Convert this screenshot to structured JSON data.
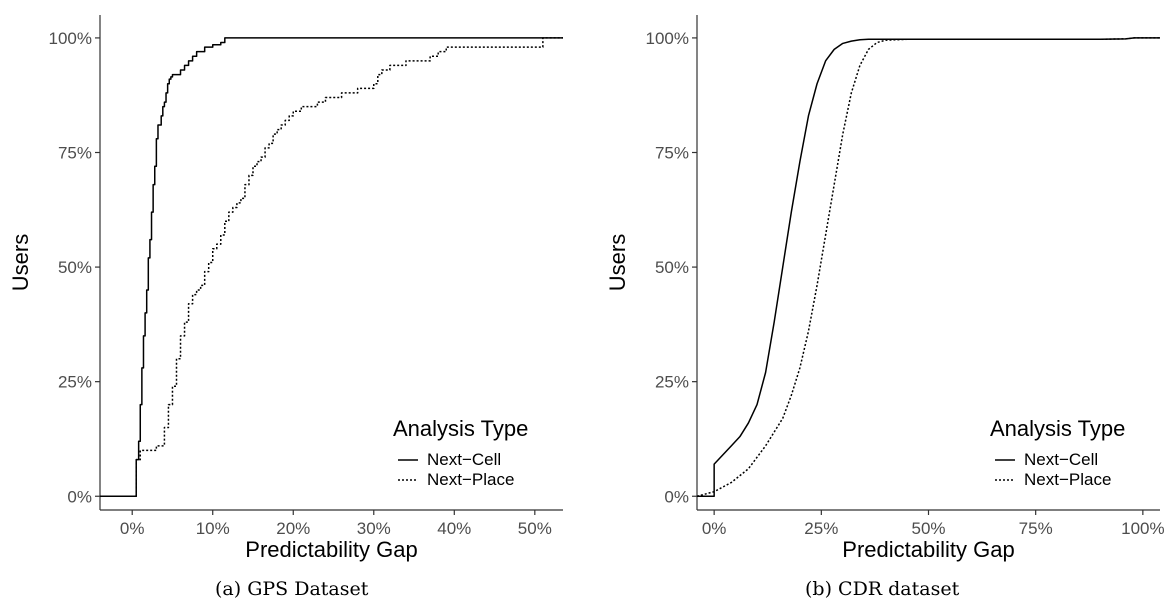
{
  "captions": [
    "(a) GPS Dataset",
    "(b) CDR dataset"
  ],
  "chart_data": [
    {
      "type": "line",
      "step": true,
      "xlabel": "Predictability Gap",
      "ylabel": "Users",
      "xlim": [
        -0.04,
        0.535
      ],
      "ylim": [
        -0.03,
        1.05
      ],
      "xticks": [
        0,
        0.1,
        0.2,
        0.3,
        0.4,
        0.5
      ],
      "xtick_labels": [
        "0%",
        "10%",
        "20%",
        "30%",
        "40%",
        "50%"
      ],
      "yticks": [
        0,
        0.25,
        0.5,
        0.75,
        1.0
      ],
      "ytick_labels": [
        "0%",
        "25%",
        "50%",
        "75%",
        "100%"
      ],
      "grid": false,
      "legend": {
        "title": "Analysis Type",
        "position": "bottom-right"
      },
      "series": [
        {
          "name": "Next−Cell",
          "style": "solid",
          "color": "#000000",
          "x": [
            -0.04,
            0.0,
            0.005,
            0.008,
            0.01,
            0.012,
            0.014,
            0.016,
            0.018,
            0.02,
            0.022,
            0.024,
            0.026,
            0.028,
            0.03,
            0.032,
            0.034,
            0.036,
            0.038,
            0.04,
            0.042,
            0.044,
            0.046,
            0.048,
            0.05,
            0.055,
            0.06,
            0.065,
            0.07,
            0.075,
            0.08,
            0.09,
            0.1,
            0.11,
            0.115,
            0.535
          ],
          "y": [
            0.0,
            0.0,
            0.08,
            0.12,
            0.2,
            0.28,
            0.35,
            0.4,
            0.45,
            0.52,
            0.56,
            0.62,
            0.68,
            0.72,
            0.78,
            0.81,
            0.81,
            0.83,
            0.85,
            0.86,
            0.88,
            0.9,
            0.91,
            0.915,
            0.92,
            0.92,
            0.93,
            0.94,
            0.95,
            0.96,
            0.97,
            0.98,
            0.985,
            0.99,
            1.0,
            1.0
          ]
        },
        {
          "name": "Next−Place",
          "style": "dotted",
          "color": "#000000",
          "x": [
            -0.04,
            0.0,
            0.005,
            0.01,
            0.02,
            0.03,
            0.04,
            0.045,
            0.05,
            0.055,
            0.06,
            0.065,
            0.07,
            0.075,
            0.08,
            0.085,
            0.09,
            0.095,
            0.1,
            0.105,
            0.11,
            0.115,
            0.12,
            0.125,
            0.13,
            0.135,
            0.14,
            0.145,
            0.15,
            0.155,
            0.16,
            0.165,
            0.17,
            0.175,
            0.18,
            0.185,
            0.19,
            0.195,
            0.2,
            0.21,
            0.22,
            0.23,
            0.24,
            0.25,
            0.26,
            0.27,
            0.28,
            0.29,
            0.3,
            0.305,
            0.31,
            0.32,
            0.33,
            0.34,
            0.35,
            0.36,
            0.37,
            0.38,
            0.39,
            0.4,
            0.5,
            0.51,
            0.535
          ],
          "y": [
            0.0,
            0.0,
            0.08,
            0.1,
            0.1,
            0.11,
            0.15,
            0.2,
            0.24,
            0.3,
            0.35,
            0.38,
            0.42,
            0.44,
            0.45,
            0.46,
            0.49,
            0.51,
            0.54,
            0.55,
            0.57,
            0.6,
            0.62,
            0.63,
            0.64,
            0.65,
            0.68,
            0.7,
            0.72,
            0.73,
            0.74,
            0.76,
            0.77,
            0.79,
            0.8,
            0.81,
            0.82,
            0.83,
            0.84,
            0.85,
            0.85,
            0.86,
            0.87,
            0.87,
            0.88,
            0.88,
            0.89,
            0.89,
            0.9,
            0.92,
            0.93,
            0.94,
            0.94,
            0.95,
            0.95,
            0.95,
            0.96,
            0.97,
            0.98,
            0.98,
            0.98,
            1.0,
            1.0
          ]
        }
      ]
    },
    {
      "type": "line",
      "step": false,
      "xlabel": "Predictability Gap",
      "ylabel": "Users",
      "xlim": [
        -0.04,
        1.04
      ],
      "ylim": [
        -0.03,
        1.05
      ],
      "xticks": [
        0,
        0.25,
        0.5,
        0.75,
        1.0
      ],
      "xtick_labels": [
        "0%",
        "25%",
        "50%",
        "75%",
        "100%"
      ],
      "yticks": [
        0,
        0.25,
        0.5,
        0.75,
        1.0
      ],
      "ytick_labels": [
        "0%",
        "25%",
        "50%",
        "75%",
        "100%"
      ],
      "grid": false,
      "legend": {
        "title": "Analysis Type",
        "position": "bottom-right"
      },
      "series": [
        {
          "name": "Next−Cell",
          "style": "solid",
          "color": "#000000",
          "x": [
            -0.04,
            0.0,
            0.0,
            0.02,
            0.04,
            0.06,
            0.08,
            0.1,
            0.12,
            0.14,
            0.16,
            0.18,
            0.2,
            0.22,
            0.24,
            0.26,
            0.28,
            0.3,
            0.32,
            0.34,
            0.36,
            0.4,
            0.5,
            0.6,
            0.7,
            0.8,
            0.9,
            0.96,
            0.98,
            1.04
          ],
          "y": [
            0.0,
            0.0,
            0.07,
            0.09,
            0.11,
            0.13,
            0.16,
            0.2,
            0.27,
            0.38,
            0.5,
            0.62,
            0.73,
            0.83,
            0.9,
            0.95,
            0.975,
            0.988,
            0.993,
            0.996,
            0.997,
            0.997,
            0.997,
            0.997,
            0.997,
            0.997,
            0.997,
            0.998,
            1.0,
            1.0
          ]
        },
        {
          "name": "Next−Place",
          "style": "dotted",
          "color": "#000000",
          "x": [
            -0.04,
            0.0,
            0.04,
            0.08,
            0.12,
            0.16,
            0.18,
            0.2,
            0.22,
            0.24,
            0.26,
            0.28,
            0.3,
            0.32,
            0.34,
            0.36,
            0.38,
            0.4,
            0.45,
            0.5,
            0.6,
            0.7,
            0.8,
            0.9,
            0.96,
            0.98,
            1.04
          ],
          "y": [
            0.0,
            0.01,
            0.03,
            0.06,
            0.11,
            0.17,
            0.22,
            0.28,
            0.36,
            0.46,
            0.57,
            0.68,
            0.79,
            0.88,
            0.94,
            0.975,
            0.99,
            0.995,
            0.997,
            0.997,
            0.997,
            0.997,
            0.997,
            0.997,
            0.998,
            1.0,
            1.0
          ]
        }
      ]
    }
  ]
}
